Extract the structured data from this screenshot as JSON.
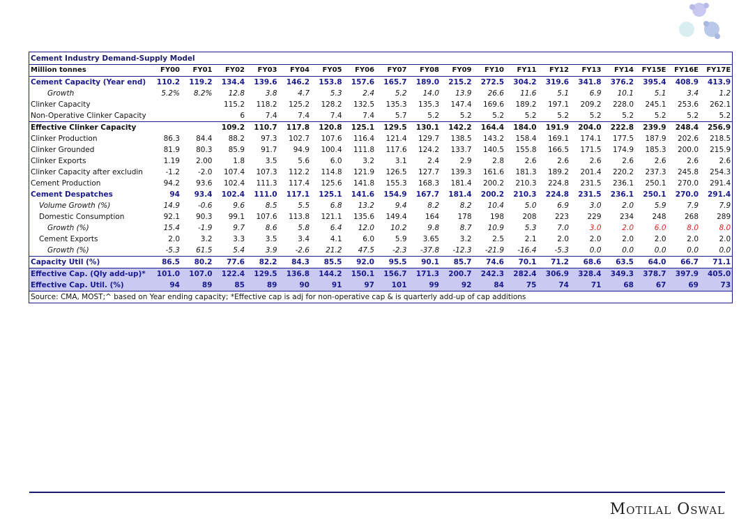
{
  "table": {
    "title": "Cement Industry Demand-Supply Model",
    "header": [
      "Million tonnes",
      "FY00",
      "FY01",
      "FY02",
      "FY03",
      "FY04",
      "FY05",
      "FY06",
      "FY07",
      "FY08",
      "FY09",
      "FY10",
      "FY11",
      "FY12",
      "FY13",
      "FY14",
      "FY15E",
      "FY16E",
      "FY17E"
    ],
    "rows": [
      [
        "Cement Capacity (Year end)",
        "110.2",
        "119.2",
        "134.4",
        "139.6",
        "146.2",
        "153.8",
        "157.6",
        "165.7",
        "189.0",
        "215.2",
        "272.5",
        "304.2",
        "319.6",
        "341.8",
        "376.2",
        "395.4",
        "408.9",
        "413.9"
      ],
      [
        "Growth",
        "5.2%",
        "8.2%",
        "12.8",
        "3.8",
        "4.7",
        "5.3",
        "2.4",
        "5.2",
        "14.0",
        "13.9",
        "26.6",
        "11.6",
        "5.1",
        "6.9",
        "10.1",
        "5.1",
        "3.4",
        "1.2"
      ],
      [
        "Clinker Capacity",
        null,
        null,
        "115.2",
        "118.2",
        "125.2",
        "128.2",
        "132.5",
        "135.3",
        "135.3",
        "147.4",
        "169.6",
        "189.2",
        "197.1",
        "209.2",
        "228.0",
        "245.1",
        "253.6",
        "262.1"
      ],
      [
        "Non-Operative Clinker Capacity",
        null,
        null,
        "6",
        "7.4",
        "7.4",
        "7.4",
        "7.4",
        "5.7",
        "5.2",
        "5.2",
        "5.2",
        "5.2",
        "5.2",
        "5.2",
        "5.2",
        "5.2",
        "5.2",
        "5.2"
      ],
      [
        "Effective Clinker Capacity",
        null,
        null,
        "109.2",
        "110.7",
        "117.8",
        "120.8",
        "125.1",
        "129.5",
        "130.1",
        "142.2",
        "164.4",
        "184.0",
        "191.9",
        "204.0",
        "222.8",
        "239.9",
        "248.4",
        "256.9"
      ],
      [
        "Clinker Production",
        "86.3",
        "84.4",
        "88.2",
        "97.3",
        "102.7",
        "107.6",
        "116.4",
        "121.4",
        "129.7",
        "138.5",
        "143.2",
        "158.4",
        "169.1",
        "174.1",
        "177.5",
        "187.9",
        "202.6",
        "218.5"
      ],
      [
        "Clinker Grounded",
        "81.9",
        "80.3",
        "85.9",
        "91.7",
        "94.9",
        "100.4",
        "111.8",
        "117.6",
        "124.2",
        "133.7",
        "140.5",
        "155.8",
        "166.5",
        "171.5",
        "174.9",
        "185.3",
        "200.0",
        "215.9"
      ],
      [
        "Clinker Exports",
        "1.19",
        "2.00",
        "1.8",
        "3.5",
        "5.6",
        "6.0",
        "3.2",
        "3.1",
        "2.4",
        "2.9",
        "2.8",
        "2.6",
        "2.6",
        "2.6",
        "2.6",
        "2.6",
        "2.6",
        "2.6"
      ],
      [
        "Clinker Capacity after excludin",
        "-1.2",
        "-2.0",
        "107.4",
        "107.3",
        "112.2",
        "114.8",
        "121.9",
        "126.5",
        "127.7",
        "139.3",
        "161.6",
        "181.3",
        "189.2",
        "201.4",
        "220.2",
        "237.3",
        "245.8",
        "254.3"
      ],
      [
        "Cement Production",
        "94.2",
        "93.6",
        "102.4",
        "111.3",
        "117.4",
        "125.6",
        "141.8",
        "155.3",
        "168.3",
        "181.4",
        "200.2",
        "210.3",
        "224.8",
        "231.5",
        "236.1",
        "250.1",
        "270.0",
        "291.4"
      ],
      [
        "Cement Despatches",
        "94",
        "93.4",
        "102.4",
        "111.0",
        "117.1",
        "125.1",
        "141.6",
        "154.9",
        "167.7",
        "181.4",
        "200.2",
        "210.3",
        "224.8",
        "231.5",
        "236.1",
        "250.1",
        "270.0",
        "291.4"
      ],
      [
        "Volume Growth (%)",
        "14.9",
        "-0.6",
        "9.6",
        "8.5",
        "5.5",
        "6.8",
        "13.2",
        "9.4",
        "8.2",
        "8.2",
        "10.4",
        "5.0",
        "6.9",
        "3.0",
        "2.0",
        "5.9",
        "7.9",
        "7.9"
      ],
      [
        "Domestic Consumption",
        "92.1",
        "90.3",
        "99.1",
        "107.6",
        "113.8",
        "121.1",
        "135.6",
        "149.4",
        "164",
        "178",
        "198",
        "208",
        "223",
        "229",
        "234",
        "248",
        "268",
        "289"
      ],
      [
        "Growth (%)",
        "15.4",
        "-1.9",
        "9.7",
        "8.6",
        "5.8",
        "6.4",
        "12.0",
        "10.2",
        "9.8",
        "8.7",
        "10.9",
        "5.3",
        "7.0",
        "3.0",
        "2.0",
        "6.0",
        "8.0",
        "8.0"
      ],
      [
        "Cement Exports",
        "2.0",
        "3.2",
        "3.3",
        "3.5",
        "3.4",
        "4.1",
        "6.0",
        "5.9",
        "3.65",
        "3.2",
        "2.5",
        "2.1",
        "2.0",
        "2.0",
        "2.0",
        "2.0",
        "2.0",
        "2.0"
      ],
      [
        "Growth (%)",
        "-5.3",
        "61.5",
        "5.4",
        "3.9",
        "-2.6",
        "21.2",
        "47.5",
        "-2.3",
        "-37.8",
        "-12.3",
        "-21.9",
        "-16.4",
        "-5.3",
        "0.0",
        "0.0",
        "0.0",
        "0.0",
        "0.0"
      ],
      [
        "Capacity Util (%)",
        "86.5",
        "80.2",
        "77.6",
        "82.2",
        "84.3",
        "85.5",
        "92.0",
        "95.5",
        "90.1",
        "85.7",
        "74.6",
        "70.1",
        "71.2",
        "68.6",
        "63.5",
        "64.0",
        "66.7",
        "71.1"
      ],
      [
        "Effective Cap. (Qly add-up)*",
        "101.0",
        "107.0",
        "122.4",
        "129.5",
        "136.8",
        "144.2",
        "150.1",
        "156.7",
        "171.3",
        "200.7",
        "242.3",
        "282.4",
        "306.9",
        "328.4",
        "349.3",
        "378.7",
        "397.9",
        "405.0"
      ],
      [
        "Effective Cap. Util. (%)",
        "94",
        "89",
        "85",
        "89",
        "90",
        "91",
        "97",
        "101",
        "99",
        "92",
        "84",
        "75",
        "74",
        "71",
        "68",
        "67",
        "69",
        "73"
      ]
    ],
    "source": "Source: CMA, MOST;^ based on Year ending capacity; *Effective cap is adj for non-operative cap & is quarterly add-up of cap additions"
  },
  "footer": {
    "brand": "Motilal Oswal"
  }
}
